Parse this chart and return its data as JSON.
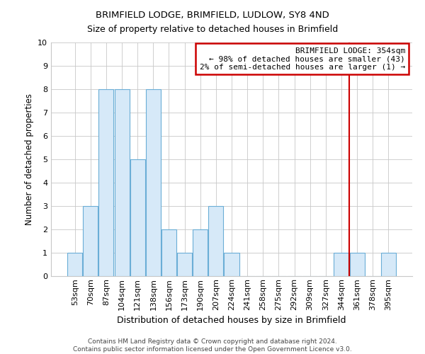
{
  "title": "BRIMFIELD LODGE, BRIMFIELD, LUDLOW, SY8 4ND",
  "subtitle": "Size of property relative to detached houses in Brimfield",
  "xlabel": "Distribution of detached houses by size in Brimfield",
  "ylabel": "Number of detached properties",
  "bar_labels": [
    "53sqm",
    "70sqm",
    "87sqm",
    "104sqm",
    "121sqm",
    "138sqm",
    "156sqm",
    "173sqm",
    "190sqm",
    "207sqm",
    "224sqm",
    "241sqm",
    "258sqm",
    "275sqm",
    "292sqm",
    "309sqm",
    "327sqm",
    "344sqm",
    "361sqm",
    "378sqm",
    "395sqm"
  ],
  "bar_values": [
    1,
    3,
    8,
    8,
    5,
    8,
    2,
    1,
    2,
    3,
    1,
    0,
    0,
    0,
    0,
    0,
    0,
    1,
    1,
    0,
    1
  ],
  "bar_color": "#d6e9f8",
  "bar_edge_color": "#6aaed6",
  "vline_color": "#cc0000",
  "annotation_text": "BRIMFIELD LODGE: 354sqm\n← 98% of detached houses are smaller (43)\n2% of semi-detached houses are larger (1) →",
  "annotation_box_edgecolor": "#cc0000",
  "ylim": [
    0,
    10
  ],
  "yticks": [
    0,
    1,
    2,
    3,
    4,
    5,
    6,
    7,
    8,
    9,
    10
  ],
  "footer_line1": "Contains HM Land Registry data © Crown copyright and database right 2024.",
  "footer_line2": "Contains public sector information licensed under the Open Government Licence v3.0.",
  "background_color": "#ffffff",
  "grid_color": "#c8c8c8",
  "title_fontsize": 9.5,
  "subtitle_fontsize": 9,
  "ylabel_fontsize": 8.5,
  "xlabel_fontsize": 9,
  "tick_fontsize": 8,
  "annot_fontsize": 8
}
